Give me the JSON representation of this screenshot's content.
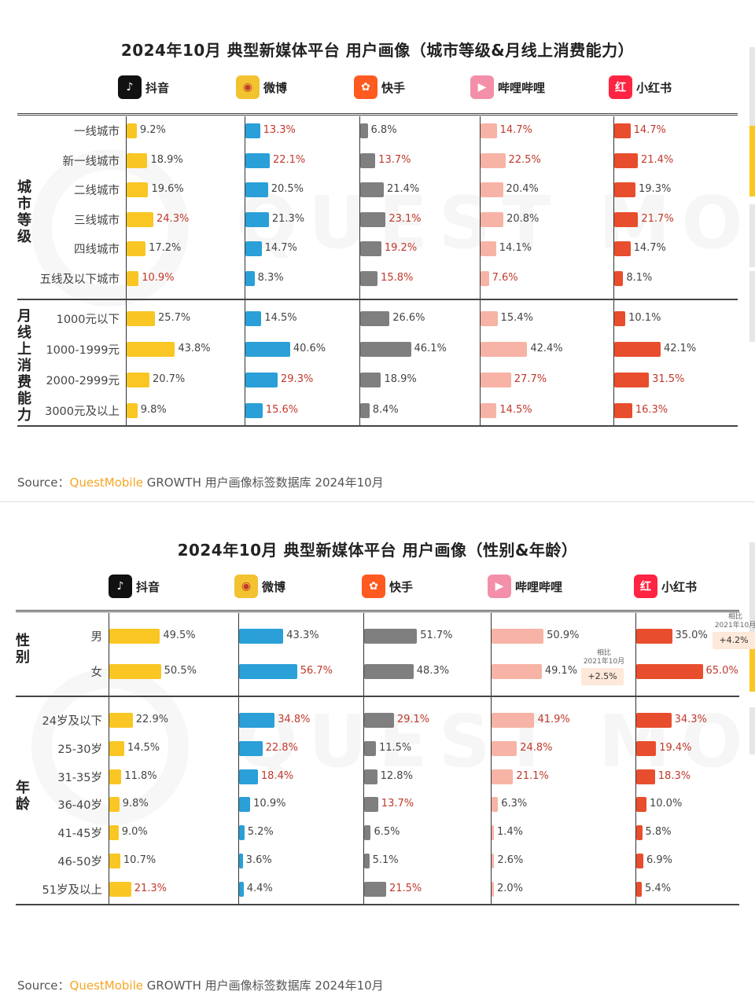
{
  "chart_data": [
    {
      "type": "bar",
      "title": "2024年10月 典型新媒体平台 用户画像（城市等级&月线上消费能力）",
      "platforms": [
        "抖音",
        "微博",
        "快手",
        "哔哩哔哩",
        "小红书"
      ],
      "groups": [
        {
          "label": "城市等级",
          "categories": [
            "一线城市",
            "新一线城市",
            "二线城市",
            "三线城市",
            "四线城市",
            "五线及以下城市"
          ],
          "series": [
            {
              "name": "抖音",
              "values": [
                9.2,
                18.9,
                19.6,
                24.3,
                17.2,
                10.9
              ]
            },
            {
              "name": "微博",
              "values": [
                13.3,
                22.1,
                20.5,
                21.3,
                14.7,
                8.3
              ]
            },
            {
              "name": "快手",
              "values": [
                6.8,
                13.7,
                21.4,
                23.1,
                19.2,
                15.8
              ]
            },
            {
              "name": "哔哩哔哩",
              "values": [
                14.7,
                22.5,
                20.4,
                20.8,
                14.1,
                7.6
              ]
            },
            {
              "name": "小红书",
              "values": [
                14.7,
                21.4,
                19.3,
                21.7,
                14.7,
                8.1
              ]
            }
          ],
          "highlights": [
            [
              3,
              5
            ],
            [
              0,
              1
            ],
            [
              1,
              3,
              4,
              5
            ],
            [
              0,
              1,
              5
            ],
            [
              0,
              1,
              3
            ]
          ]
        },
        {
          "label": "月线上消费能力",
          "categories": [
            "1000元以下",
            "1000-1999元",
            "2000-2999元",
            "3000元及以上"
          ],
          "series": [
            {
              "name": "抖音",
              "values": [
                25.7,
                43.8,
                20.7,
                9.8
              ]
            },
            {
              "name": "微博",
              "values": [
                14.5,
                40.6,
                29.3,
                15.6
              ]
            },
            {
              "name": "快手",
              "values": [
                26.6,
                46.1,
                18.9,
                8.4
              ]
            },
            {
              "name": "哔哩哔哩",
              "values": [
                15.4,
                42.4,
                27.7,
                14.5
              ]
            },
            {
              "name": "小红书",
              "values": [
                10.1,
                42.1,
                31.5,
                16.3
              ]
            }
          ],
          "highlights": [
            [],
            [
              2,
              3
            ],
            [],
            [
              2,
              3
            ],
            [
              2,
              3
            ]
          ]
        }
      ],
      "source": {
        "label": "Source：",
        "brand": "QuestMobile",
        "text": " GROWTH 用户画像标签数据库 2024年10月"
      }
    },
    {
      "type": "bar",
      "title": "2024年10月 典型新媒体平台 用户画像（性别&年龄）",
      "platforms": [
        "抖音",
        "微博",
        "快手",
        "哔哩哔哩",
        "小红书"
      ],
      "groups": [
        {
          "label": "性别",
          "categories": [
            "男",
            "女"
          ],
          "series": [
            {
              "name": "抖音",
              "values": [
                49.5,
                50.5
              ]
            },
            {
              "name": "微博",
              "values": [
                43.3,
                56.7
              ]
            },
            {
              "name": "快手",
              "values": [
                51.7,
                48.3
              ]
            },
            {
              "name": "哔哩哔哩",
              "values": [
                50.9,
                49.1
              ]
            },
            {
              "name": "小红书",
              "values": [
                35.0,
                65.0
              ]
            }
          ],
          "highlights": [
            [],
            [
              1
            ],
            [],
            [],
            [
              1
            ]
          ]
        },
        {
          "label": "年龄",
          "categories": [
            "24岁及以下",
            "25-30岁",
            "31-35岁",
            "36-40岁",
            "41-45岁",
            "46-50岁",
            "51岁及以上"
          ],
          "series": [
            {
              "name": "抖音",
              "values": [
                22.9,
                14.5,
                11.8,
                9.8,
                9.0,
                10.7,
                21.3
              ]
            },
            {
              "name": "微博",
              "values": [
                34.8,
                22.8,
                18.4,
                10.9,
                5.2,
                3.6,
                4.4
              ]
            },
            {
              "name": "快手",
              "values": [
                29.1,
                11.5,
                12.8,
                13.7,
                6.5,
                5.1,
                21.5
              ]
            },
            {
              "name": "哔哩哔哩",
              "values": [
                41.9,
                24.8,
                21.1,
                6.3,
                1.4,
                2.6,
                2.0
              ]
            },
            {
              "name": "小红书",
              "values": [
                34.3,
                19.4,
                18.3,
                10.0,
                5.8,
                6.9,
                5.4
              ]
            }
          ],
          "highlights": [
            [
              6
            ],
            [
              0,
              1,
              2
            ],
            [
              0,
              3,
              6
            ],
            [
              0,
              1,
              2
            ],
            [
              0,
              1,
              2
            ]
          ]
        }
      ],
      "notes": [
        {
          "platform": "哔哩哔哩",
          "caption": "相比\n2021年10月",
          "value": "+2.5%"
        },
        {
          "platform": "小红书",
          "caption": "相比\n2021年10月",
          "value": "+4.2%"
        }
      ],
      "source": {
        "label": "Source：",
        "brand": "QuestMobile",
        "text": " GROWTH 用户画像标签数据库 2024年10月"
      }
    }
  ],
  "colors": {
    "抖音": "#f9c623",
    "微博": "#2a9fd8",
    "快手": "#7f7f7f",
    "哔哩哔哩": "#f7b3a5",
    "小红书": "#e84e2d",
    "highlight_text": "#c0392b",
    "normal_text": "#444444"
  },
  "icons": [
    "douyin-icon",
    "weibo-icon",
    "kuaishou-icon",
    "bilibili-icon",
    "xiaohongshu-icon"
  ],
  "watermark": "QUEST MOBILE"
}
